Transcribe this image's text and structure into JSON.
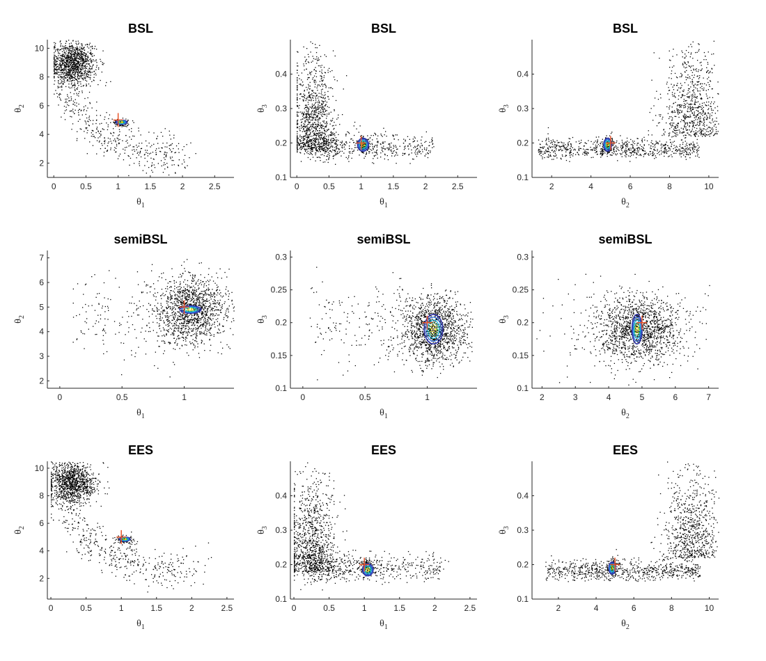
{
  "figure": {
    "rows": [
      {
        "method": "BSL"
      },
      {
        "method": "semiBSL"
      },
      {
        "method": "EES"
      }
    ]
  },
  "chart_data": [
    {
      "type": "scatter",
      "title": "BSL",
      "xlabel": "θ1",
      "ylabel": "θ2",
      "xlim": [
        -0.1,
        2.8
      ],
      "ylim": [
        1,
        10.6
      ],
      "xticks": [
        "0",
        "0.5",
        "1",
        "1.5",
        "2",
        "2.5"
      ],
      "yticks": [
        "2",
        "4",
        "6",
        "8",
        "10"
      ],
      "true_value": [
        1,
        5
      ],
      "posterior_mode": [
        1.05,
        4.85
      ],
      "contour_extent": [
        0.17,
        0.3
      ],
      "grid": false
    },
    {
      "type": "scatter",
      "title": "BSL",
      "xlabel": "θ1",
      "ylabel": "θ3",
      "xlim": [
        -0.1,
        2.8
      ],
      "ylim": [
        0.1,
        0.5
      ],
      "xticks": [
        "0",
        "0.5",
        "1",
        "1.5",
        "2",
        "2.5"
      ],
      "yticks": [
        "0.1",
        "0.2",
        "0.3",
        "0.4"
      ],
      "true_value": [
        1,
        0.2
      ],
      "posterior_mode": [
        1.03,
        0.195
      ],
      "contour_extent": [
        0.17,
        0.038
      ],
      "grid": false
    },
    {
      "type": "scatter",
      "title": "BSL",
      "xlabel": "θ2",
      "ylabel": "θ3",
      "xlim": [
        1,
        10.5
      ],
      "ylim": [
        0.1,
        0.5
      ],
      "xticks": [
        "2",
        "4",
        "6",
        "8",
        "10"
      ],
      "yticks": [
        "0.1",
        "0.2",
        "0.3",
        "0.4"
      ],
      "true_value": [
        5,
        0.2
      ],
      "posterior_mode": [
        4.85,
        0.195
      ],
      "contour_extent": [
        0.4,
        0.038
      ],
      "grid": false
    },
    {
      "type": "scatter",
      "title": "semiBSL",
      "xlabel": "θ1",
      "ylabel": "θ2",
      "xlim": [
        -0.1,
        1.4
      ],
      "ylim": [
        1.7,
        7.3
      ],
      "xticks": [
        "0",
        "0.5",
        "1"
      ],
      "yticks": [
        "2",
        "3",
        "4",
        "5",
        "6",
        "7"
      ],
      "true_value": [
        1,
        5
      ],
      "posterior_mode": [
        1.05,
        4.9
      ],
      "contour_extent": [
        0.17,
        0.3
      ],
      "grid": false
    },
    {
      "type": "scatter",
      "title": "semiBSL",
      "xlabel": "θ1",
      "ylabel": "θ3",
      "xlim": [
        -0.1,
        1.4
      ],
      "ylim": [
        0.1,
        0.31
      ],
      "xticks": [
        "0",
        "0.5",
        "1"
      ],
      "yticks": [
        "0.1",
        "0.15",
        "0.2",
        "0.25",
        "0.3"
      ],
      "true_value": [
        1,
        0.2
      ],
      "posterior_mode": [
        1.05,
        0.19
      ],
      "contour_extent": [
        0.15,
        0.045
      ],
      "grid": false
    },
    {
      "type": "scatter",
      "title": "semiBSL",
      "xlabel": "θ2",
      "ylabel": "θ3",
      "xlim": [
        1.7,
        7.3
      ],
      "ylim": [
        0.1,
        0.31
      ],
      "xticks": [
        "2",
        "3",
        "4",
        "5",
        "6",
        "7"
      ],
      "yticks": [
        "0.1",
        "0.15",
        "0.2",
        "0.25",
        "0.3"
      ],
      "true_value": [
        5,
        0.2
      ],
      "posterior_mode": [
        4.85,
        0.19
      ],
      "contour_extent": [
        0.3,
        0.045
      ],
      "grid": false
    },
    {
      "type": "scatter",
      "title": "EES",
      "xlabel": "θ1",
      "ylabel": "θ2",
      "xlim": [
        -0.05,
        2.6
      ],
      "ylim": [
        0.5,
        10.5
      ],
      "xticks": [
        "0",
        "0.5",
        "1",
        "1.5",
        "2",
        "2.5"
      ],
      "yticks": [
        "2",
        "4",
        "6",
        "8",
        "10"
      ],
      "true_value": [
        1,
        5
      ],
      "posterior_mode": [
        1.05,
        4.85
      ],
      "contour_extent": [
        0.15,
        0.3
      ],
      "grid": false
    },
    {
      "type": "scatter",
      "title": "EES",
      "xlabel": "θ1",
      "ylabel": "θ3",
      "xlim": [
        -0.05,
        2.6
      ],
      "ylim": [
        0.1,
        0.5
      ],
      "xticks": [
        "0",
        "0.5",
        "1",
        "1.5",
        "2",
        "2.5"
      ],
      "yticks": [
        "0.1",
        "0.2",
        "0.3",
        "0.4"
      ],
      "true_value": [
        1,
        0.2
      ],
      "posterior_mode": [
        1.05,
        0.185
      ],
      "contour_extent": [
        0.15,
        0.035
      ],
      "grid": false
    },
    {
      "type": "scatter",
      "title": "EES",
      "xlabel": "θ2",
      "ylabel": "θ3",
      "xlim": [
        0.6,
        10.5
      ],
      "ylim": [
        0.1,
        0.5
      ],
      "xticks": [
        "2",
        "4",
        "6",
        "8",
        "10"
      ],
      "yticks": [
        "0.1",
        "0.2",
        "0.3",
        "0.4"
      ],
      "true_value": [
        5,
        0.2
      ],
      "posterior_mode": [
        4.85,
        0.19
      ],
      "contour_extent": [
        0.35,
        0.035
      ],
      "grid": false
    }
  ],
  "colors": {
    "points": "#000000",
    "contours": [
      "#2b2fa6",
      "#2f6fe0",
      "#16b3d6",
      "#3dcc6a",
      "#c5de1f",
      "#f5d21a"
    ],
    "true_value_marker": "#e8542a"
  }
}
